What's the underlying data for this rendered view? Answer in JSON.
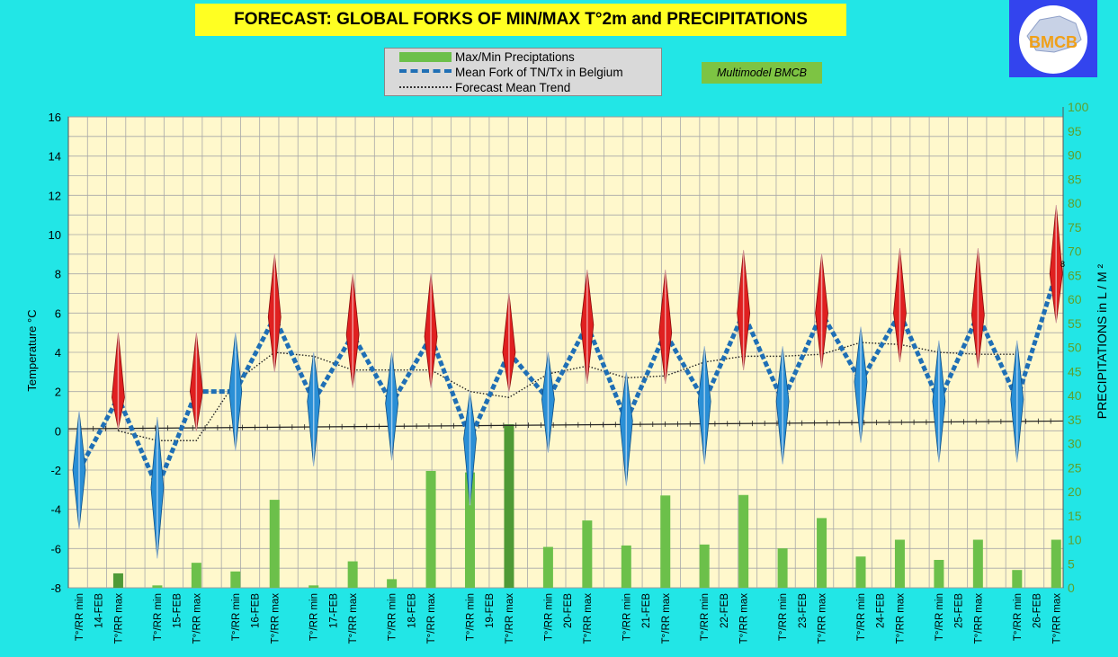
{
  "title": "FORECAST: GLOBAL FORKS OF  MIN/MAX T°2m and PRECIPITATIONS",
  "legend": {
    "precip": "Max/Min Preciptations",
    "mean_fork": "Mean Fork of TN/Tx in Belgium",
    "trend": "Forecast Mean Trend"
  },
  "badge": "Multimodel BMCB",
  "logo_text": "BMCB",
  "colors": {
    "background": "#22e6e6",
    "plot_bg": "#fff8cc",
    "grid": "#a8a8a8",
    "precip_bar": "#6cc04a",
    "precip_bar_dark": "#4f9a36",
    "mean_fork_line": "#1f6fb5",
    "diamond_min": "#2a8fd6",
    "diamond_max": "#e02020",
    "right_axis": "#5fa02c"
  },
  "chart_data": {
    "type": "line",
    "ylabel": "Temperature  °C",
    "y2label": "PRECIPITATIONS in L / M ²",
    "ylim": [
      -8,
      16
    ],
    "y_ticks": [
      -8,
      -6,
      -4,
      -2,
      0,
      2,
      4,
      6,
      8,
      10,
      12,
      14,
      16
    ],
    "y2lim": [
      0,
      100
    ],
    "y2_ticks": [
      0,
      5,
      10,
      15,
      20,
      25,
      30,
      35,
      40,
      45,
      50,
      55,
      60,
      65,
      70,
      75,
      80,
      85,
      90,
      95,
      100
    ],
    "grid": true,
    "legend_position": "top-center",
    "days": [
      "14-FEB",
      "15-FEB",
      "16-FEB",
      "17-FEB",
      "18-FEB",
      "19-FEB",
      "20-FEB",
      "21-FEB",
      "22-FEB",
      "23-FEB",
      "24-FEB",
      "25-FEB",
      "26-FEB"
    ],
    "min_label": "T°/RR min",
    "max_label": "T°/RR max",
    "series": [
      {
        "name": "Mean Fork of TN/Tx in Belgium",
        "values": [
          -2,
          1.7,
          -2.9,
          2,
          2,
          5.8,
          1.5,
          4.9,
          1.4,
          4.8,
          -0.4,
          4,
          1.6,
          5.4,
          0.5,
          5,
          1.5,
          6,
          1.5,
          6,
          2.5,
          6,
          1.5,
          5.9,
          1.6,
          8
        ]
      },
      {
        "name": "Max/Min Preciptations",
        "values": [
          0,
          3,
          0.5,
          5.2,
          3.4,
          18.3,
          0.5,
          5.5,
          1.8,
          24.3,
          24,
          34,
          8.5,
          14,
          8.8,
          19.2,
          9,
          19.3,
          8.2,
          14.5,
          6.5,
          10,
          5.8,
          10,
          3.7,
          10
        ]
      },
      {
        "name": "Forecast Mean Trend",
        "values": [
          null,
          0,
          -0.5,
          -0.5,
          2.5,
          4,
          3.8,
          3.1,
          3.1,
          3.1,
          2,
          1.7,
          2.9,
          3.3,
          2.7,
          2.8,
          3.5,
          3.8,
          3.8,
          3.9,
          4.5,
          4.4,
          4,
          3.9,
          3.9,
          null
        ]
      },
      {
        "name": "Ensemble range",
        "values_low": [
          -5,
          0.1,
          -6.5,
          0,
          -1,
          3,
          -1.8,
          2.2,
          -1.5,
          2.2,
          -3.8,
          2,
          -1.1,
          2.4,
          -2.8,
          2.4,
          -1.7,
          3.1,
          -1.7,
          3.2,
          -0.6,
          3.5,
          -1.6,
          3.2,
          -1.6,
          5.5
        ],
        "values_high": [
          1,
          5,
          0.7,
          5,
          5,
          9,
          4,
          8,
          4,
          8,
          2,
          7,
          4,
          8.2,
          3,
          8.2,
          4.3,
          9.2,
          4.3,
          9,
          5.3,
          9.3,
          4.6,
          9.3,
          4.6,
          11.5
        ]
      },
      {
        "name": "Zero reference",
        "values": [
          0.1,
          0.1,
          0.15,
          0.15,
          0.2,
          0.2,
          0.2,
          0.2,
          0.25,
          0.25,
          0.25,
          0.3,
          0.3,
          0.3,
          0.3,
          0.35,
          0.35,
          0.35,
          0.4,
          0.4,
          0.4,
          0.45,
          0.45,
          0.45,
          0.5,
          0.5
        ]
      }
    ],
    "annotation": "8",
    "dark_bar_indices": [
      1,
      11
    ]
  }
}
